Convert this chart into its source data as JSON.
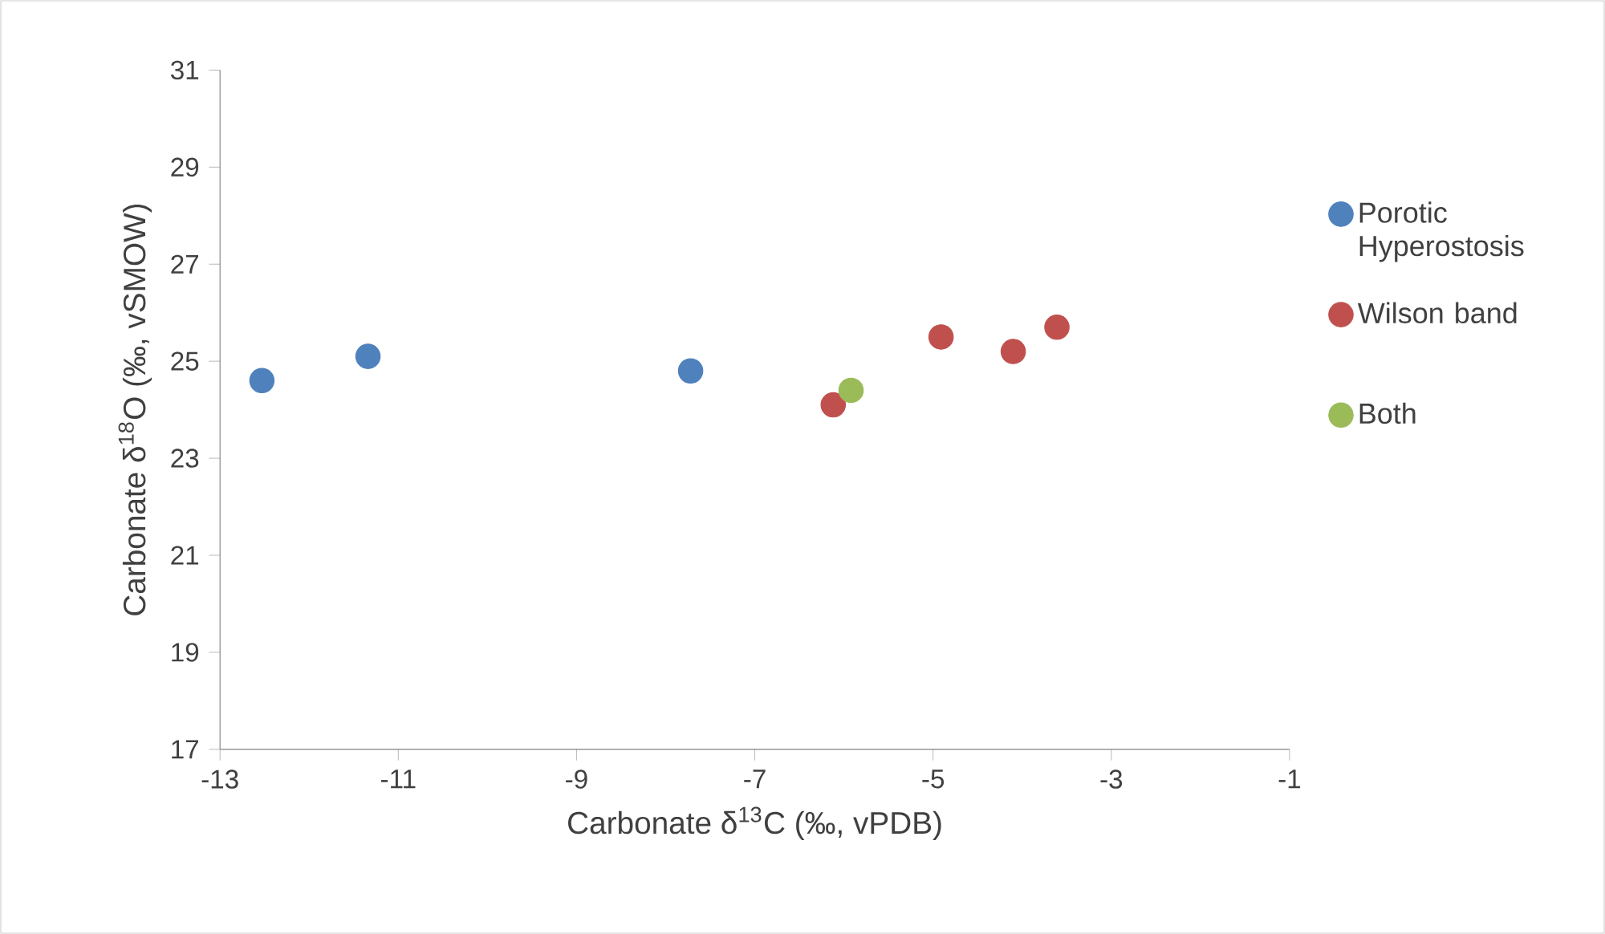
{
  "chart_data": {
    "type": "scatter",
    "xlabel": "Carbonate δ$^{13}$C (‰, vPDB)",
    "ylabel": "Carbonate δ$^{18}$O (‰, vSMOW)",
    "xlim": [
      -13,
      -1
    ],
    "xticks": [
      -13,
      -11,
      -9,
      -7,
      -5,
      -3,
      -1
    ],
    "ylim": [
      17,
      31
    ],
    "yticks": [
      17,
      19,
      21,
      23,
      25,
      27,
      29,
      31
    ],
    "marker": "circle",
    "grid": false,
    "legend": "right",
    "series": [
      {
        "name": "Porotic Hyperostosis",
        "color": "#4f81bd",
        "x": [
          -12.53,
          -11.34,
          -7.72
        ],
        "values": [
          24.6,
          25.1,
          24.8
        ]
      },
      {
        "name": "Wilson band",
        "color": "#c0504d",
        "x": [
          -6.12,
          -4.91,
          -4.1,
          -3.61
        ],
        "values": [
          24.1,
          25.5,
          25.2,
          25.7
        ]
      },
      {
        "name": "Both",
        "color": "#9bbb59",
        "x": [
          -5.92
        ],
        "values": [
          24.4
        ]
      }
    ]
  }
}
